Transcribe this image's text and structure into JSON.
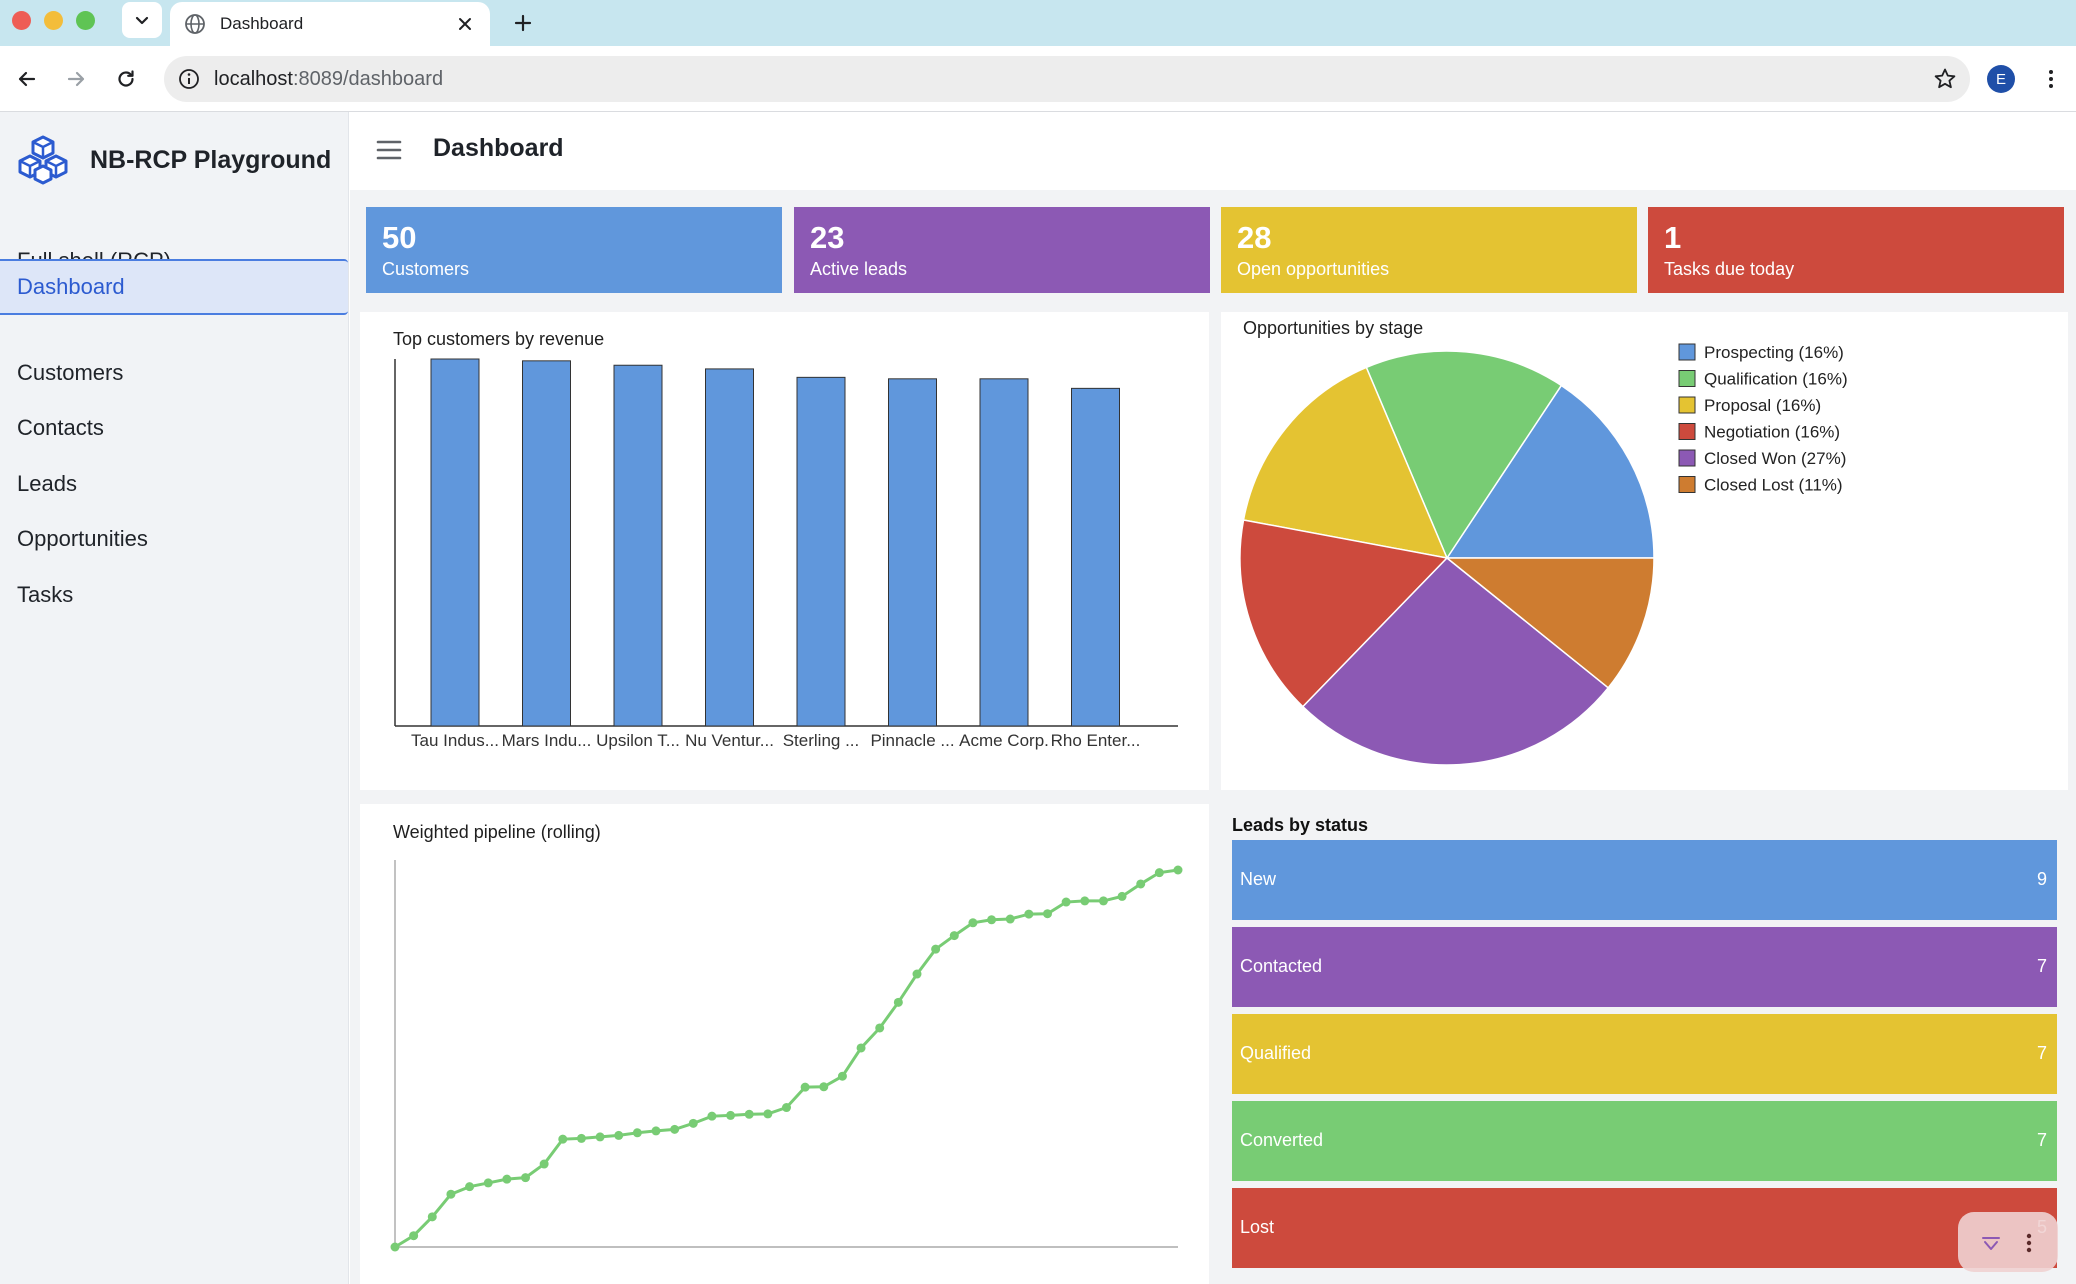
{
  "browser": {
    "tab_title": "Dashboard",
    "url_host": "localhost",
    "url_rest": ":8089/dashboard",
    "profile_initial": "E"
  },
  "sidebar": {
    "brand": "NB-RCP Playground",
    "items": [
      {
        "label": "Full shell (RCP)",
        "active": false
      },
      {
        "label": "Dashboard",
        "active": true
      },
      {
        "label": "Customers",
        "active": false
      },
      {
        "label": "Contacts",
        "active": false
      },
      {
        "label": "Leads",
        "active": false
      },
      {
        "label": "Opportunities",
        "active": false
      },
      {
        "label": "Tasks",
        "active": false
      }
    ]
  },
  "header": {
    "title": "Dashboard"
  },
  "kpis": [
    {
      "value": "50",
      "label": "Customers",
      "color": "#6097dc"
    },
    {
      "value": "23",
      "label": "Active leads",
      "color": "#8c59b4"
    },
    {
      "value": "28",
      "label": "Open opportunities",
      "color": "#e4c332"
    },
    {
      "value": "1",
      "label": "Tasks due today",
      "color": "#cd4a3d"
    }
  ],
  "colors": {
    "blue": "#6097dc",
    "purple": "#8c59b4",
    "yellow": "#e4c332",
    "green": "#78cc74",
    "red": "#cd4a3d",
    "orange": "#ce7c30"
  },
  "chart_data": [
    {
      "type": "bar",
      "title": "Top customers by revenue",
      "categories": [
        "Tau Indus...",
        "Mars Indu...",
        "Upsilon T...",
        "Nu Ventur...",
        "Sterling ...",
        "Pinnacle ...",
        "Acme Corp.",
        "Rho Enter..."
      ],
      "values": [
        100,
        99.5,
        98.3,
        97.3,
        95,
        94.6,
        94.6,
        92
      ],
      "ylim": [
        0,
        100
      ],
      "color": "#6097dc"
    },
    {
      "type": "pie",
      "title": "Opportunities by stage",
      "slices": [
        {
          "label": "Prospecting (16%)",
          "value": 16,
          "color": "#6097dc"
        },
        {
          "label": "Qualification (16%)",
          "value": 16,
          "color": "#78cc74"
        },
        {
          "label": "Proposal (16%)",
          "value": 16,
          "color": "#e4c332"
        },
        {
          "label": "Negotiation (16%)",
          "value": 16,
          "color": "#cd4a3d"
        },
        {
          "label": "Closed Won (27%)",
          "value": 27,
          "color": "#8c59b4"
        },
        {
          "label": "Closed Lost (11%)",
          "value": 11,
          "color": "#ce7c30"
        }
      ],
      "legend": "right"
    },
    {
      "type": "line",
      "title": "Weighted pipeline (rolling)",
      "values": [
        0,
        3,
        8,
        14,
        16,
        17,
        18,
        18.4,
        22,
        28.6,
        28.8,
        29.2,
        29.6,
        30.3,
        30.8,
        31.2,
        32.8,
        34.7,
        34.9,
        35.2,
        35.3,
        37,
        42.4,
        42.5,
        45.3,
        52.8,
        58.1,
        64.9,
        72.4,
        79,
        82.6,
        86,
        86.8,
        87,
        88.3,
        88.4,
        91.5,
        91.8,
        91.8,
        93,
        96.3,
        99.3,
        100
      ],
      "ylim": [
        0,
        100
      ],
      "color": "#78cc74"
    }
  ],
  "leads": {
    "title": "Leads by status",
    "items": [
      {
        "label": "New",
        "count": "9",
        "color": "#6097dc"
      },
      {
        "label": "Contacted",
        "count": "7",
        "color": "#8c59b4"
      },
      {
        "label": "Qualified",
        "count": "7",
        "color": "#e4c332"
      },
      {
        "label": "Converted",
        "count": "7",
        "color": "#78cc74"
      },
      {
        "label": "Lost",
        "count": "5",
        "color": "#cd4a3d"
      }
    ]
  }
}
